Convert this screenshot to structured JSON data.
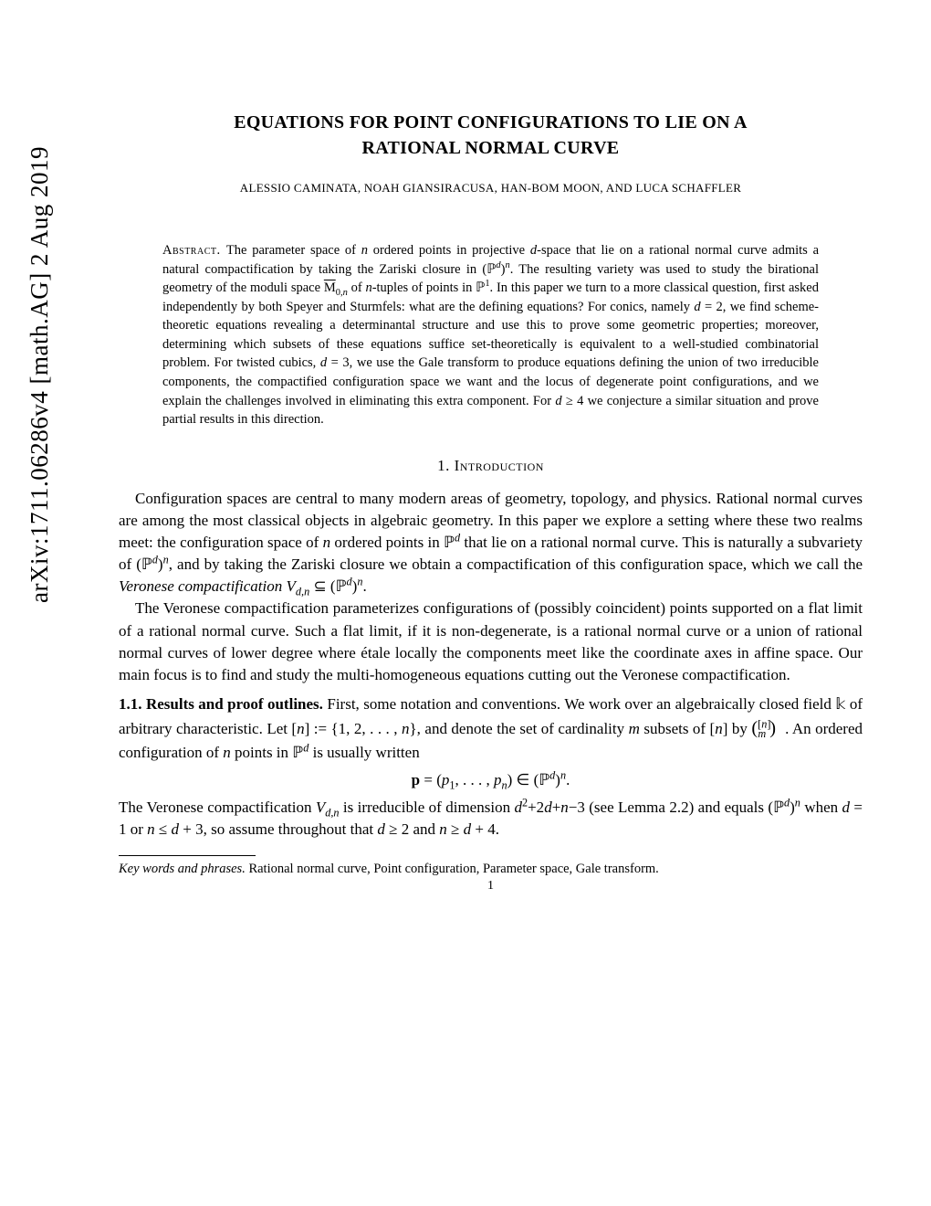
{
  "arxiv_id": "arXiv:1711.06286v4  [math.AG]  2 Aug 2019",
  "title_line1": "EQUATIONS FOR POINT CONFIGURATIONS TO LIE ON A",
  "title_line2": "RATIONAL NORMAL CURVE",
  "authors": "ALESSIO CAMINATA, NOAH GIANSIRACUSA, HAN-BOM MOON, AND LUCA SCHAFFLER",
  "abstract_label": "Abstract.",
  "abstract_text": "The parameter space of n ordered points in projective d-space that lie on a rational normal curve admits a natural compactification by taking the Zariski closure in (ℙᵈ)ⁿ. The resulting variety was used to study the birational geometry of the moduli space M̄₀,ₙ of n-tuples of points in ℙ¹. In this paper we turn to a more classical question, first asked independently by both Speyer and Sturmfels: what are the defining equations? For conics, namely d = 2, we find scheme-theoretic equations revealing a determinantal structure and use this to prove some geometric properties; moreover, determining which subsets of these equations suffice set-theoretically is equivalent to a well-studied combinatorial problem. For twisted cubics, d = 3, we use the Gale transform to produce equations defining the union of two irreducible components, the compactified configuration space we want and the locus of degenerate point configurations, and we explain the challenges involved in eliminating this extra component. For d ≥ 4 we conjecture a similar situation and prove partial results in this direction.",
  "section1_heading": "1. Introduction",
  "para1": "Configuration spaces are central to many modern areas of geometry, topology, and physics. Rational normal curves are among the most classical objects in algebraic geometry. In this paper we explore a setting where these two realms meet: the configuration space of n ordered points in ℙᵈ that lie on a rational normal curve. This is naturally a subvariety of (ℙᵈ)ⁿ, and by taking the Zariski closure we obtain a compactification of this configuration space, which we call the Veronese compactification Vd,n ⊆ (ℙᵈ)ⁿ.",
  "para2": "The Veronese compactification parameterizes configurations of (possibly coincident) points supported on a flat limit of a rational normal curve. Such a flat limit, if it is non-degenerate, is a rational normal curve or a union of rational normal curves of lower degree where étale locally the components meet like the coordinate axes in affine space. Our main focus is to find and study the multi-homogeneous equations cutting out the Veronese compactification.",
  "subsection_label": "1.1. Results and proof outlines.",
  "subsection_text": "First, some notation and conventions. We work over an algebraically closed field 𝕜 of arbitrary characteristic. Let [n] := {1, 2, . . . , n}, and denote the set of cardinality m subsets of [n] by ([n] choose m). An ordered configuration of n points in ℙᵈ is usually written",
  "equation": "p = (p₁, . . . , pₙ) ∈ (ℙᵈ)ⁿ.",
  "para3": "The Veronese compactification Vd,n is irreducible of dimension d²+2d+n−3 (see Lemma 2.2) and equals (ℙᵈ)ⁿ when d = 1 or n ≤ d + 3, so assume throughout that d ≥ 2 and n ≥ d + 4.",
  "keywords_label": "Key words and phrases.",
  "keywords_text": "Rational normal curve, Point configuration, Parameter space, Gale transform.",
  "page_number": "1",
  "colors": {
    "text": "#000000",
    "background": "#ffffff"
  },
  "fonts": {
    "body_size": 17,
    "abstract_size": 14.5,
    "title_size": 20,
    "authors_size": 13,
    "arxiv_size": 27
  }
}
